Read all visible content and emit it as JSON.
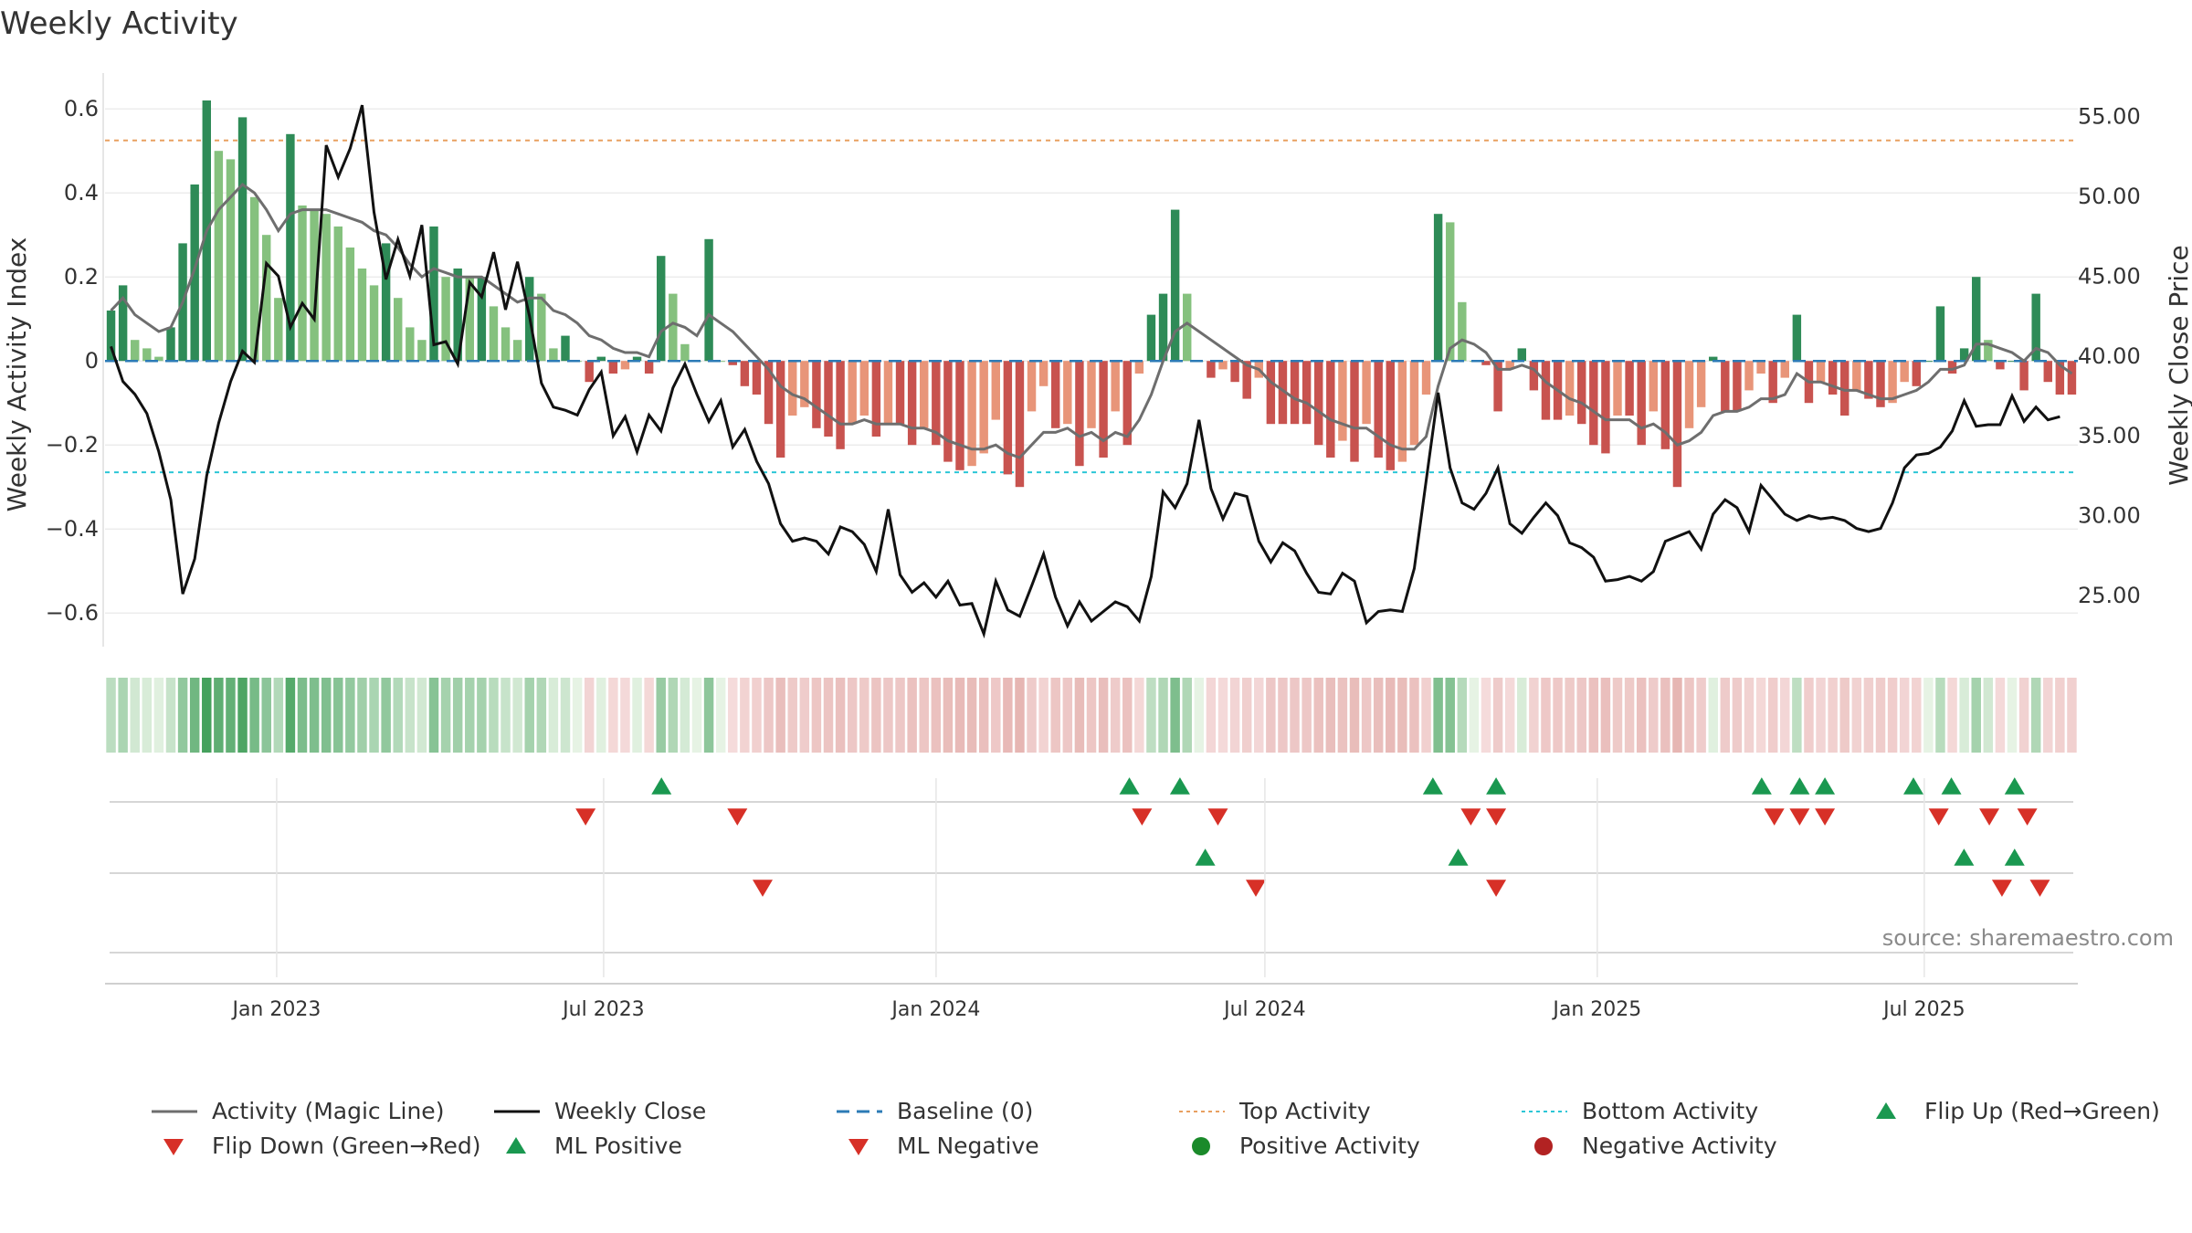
{
  "title": "Weekly Activity",
  "source": "source: sharemaestro.com",
  "colors": {
    "green_strong": "#2e8b57",
    "green_light": "#85c17e",
    "red_strong": "#c8534f",
    "red_light": "#e89579",
    "magic_line": "#6e6e6e",
    "close_line": "#111111",
    "baseline": "#2c7bb6",
    "top_activity": "#e8a060",
    "bottom_activity": "#2cc6d6",
    "marker_up": "#1a9850",
    "marker_down": "#d73027",
    "positive_dot": "#1a8a2a",
    "negative_dot": "#b22222"
  },
  "chart_data": {
    "type": "bar",
    "title": "Weekly Activity",
    "xlabel": "",
    "ylabel": "Weekly Activity Index",
    "y2label": "Weekly Close Price",
    "ylim": [
      -0.68,
      0.62
    ],
    "y2lim": [
      21.8,
      56.0
    ],
    "yticks": [
      -0.6,
      -0.4,
      -0.2,
      0,
      0.2,
      0.4,
      0.6
    ],
    "ytick_labels": [
      "−0.6",
      "−0.4",
      "−0.2",
      "0",
      "0.2",
      "0.4",
      "0.6"
    ],
    "y2ticks": [
      25,
      30,
      35,
      40,
      45,
      50,
      55
    ],
    "y2tick_labels": [
      "25.00",
      "30.00",
      "35.00",
      "40.00",
      "45.00",
      "50.00",
      "55.00"
    ],
    "x_start": "2022-09-28",
    "x_end": "2025-09-24",
    "xticks": [
      "2023-01-01",
      "2023-07-01",
      "2024-01-01",
      "2024-07-01",
      "2025-01-01",
      "2025-07-01"
    ],
    "xtick_labels": [
      "Jan 2023",
      "Jul 2023",
      "Jan 2024",
      "Jul 2024",
      "Jan 2025",
      "Jul 2025"
    ],
    "top_activity": 0.525,
    "bottom_activity": -0.265,
    "activity": [
      0.12,
      0.18,
      0.05,
      0.03,
      0.01,
      0.08,
      0.28,
      0.42,
      0.62,
      0.5,
      0.48,
      0.58,
      0.39,
      0.3,
      0.15,
      0.54,
      0.37,
      0.36,
      0.35,
      0.32,
      0.27,
      0.22,
      0.18,
      0.28,
      0.15,
      0.08,
      0.05,
      0.32,
      0.2,
      0.22,
      0.2,
      0.2,
      0.13,
      0.08,
      0.05,
      0.2,
      0.16,
      0.03,
      0.06,
      0.0,
      -0.05,
      0.01,
      -0.03,
      -0.02,
      0.01,
      -0.03,
      0.25,
      0.16,
      0.04,
      0.0,
      0.29,
      0.0,
      -0.01,
      -0.06,
      -0.08,
      -0.15,
      -0.23,
      -0.13,
      -0.11,
      -0.16,
      -0.18,
      -0.21,
      -0.15,
      -0.13,
      -0.18,
      -0.15,
      -0.15,
      -0.2,
      -0.16,
      -0.2,
      -0.24,
      -0.26,
      -0.25,
      -0.22,
      -0.14,
      -0.27,
      -0.3,
      -0.12,
      -0.06,
      -0.16,
      -0.15,
      -0.25,
      -0.16,
      -0.23,
      -0.12,
      -0.2,
      -0.03,
      0.11,
      0.16,
      0.36,
      0.16,
      0.0,
      -0.04,
      -0.02,
      -0.05,
      -0.09,
      -0.04,
      -0.15,
      -0.15,
      -0.15,
      -0.15,
      -0.2,
      -0.23,
      -0.19,
      -0.24,
      -0.15,
      -0.23,
      -0.26,
      -0.24,
      -0.2,
      -0.08,
      0.35,
      0.33,
      0.14,
      0.0,
      -0.01,
      -0.12,
      -0.02,
      0.03,
      -0.07,
      -0.14,
      -0.14,
      -0.13,
      -0.15,
      -0.2,
      -0.22,
      -0.13,
      -0.13,
      -0.2,
      -0.12,
      -0.21,
      -0.3,
      -0.16,
      -0.11,
      0.01,
      -0.12,
      -0.12,
      -0.07,
      -0.03,
      -0.1,
      -0.04,
      0.11,
      -0.1,
      -0.05,
      -0.08,
      -0.13,
      -0.07,
      -0.09,
      -0.11,
      -0.1,
      -0.05,
      -0.06,
      0.0,
      0.13,
      -0.03,
      0.03,
      0.2,
      0.05,
      -0.02,
      0.0,
      -0.07,
      0.16,
      -0.05,
      -0.08,
      -0.08
    ],
    "magic_line": [
      0.12,
      0.15,
      0.11,
      0.09,
      0.07,
      0.08,
      0.14,
      0.22,
      0.31,
      0.36,
      0.39,
      0.42,
      0.4,
      0.36,
      0.31,
      0.35,
      0.36,
      0.36,
      0.36,
      0.35,
      0.34,
      0.33,
      0.31,
      0.3,
      0.27,
      0.23,
      0.2,
      0.22,
      0.21,
      0.2,
      0.2,
      0.2,
      0.18,
      0.16,
      0.14,
      0.15,
      0.15,
      0.12,
      0.11,
      0.09,
      0.06,
      0.05,
      0.03,
      0.02,
      0.02,
      0.01,
      0.07,
      0.09,
      0.08,
      0.06,
      0.11,
      0.09,
      0.07,
      0.04,
      0.01,
      -0.02,
      -0.06,
      -0.08,
      -0.09,
      -0.11,
      -0.13,
      -0.15,
      -0.15,
      -0.14,
      -0.15,
      -0.15,
      -0.15,
      -0.16,
      -0.16,
      -0.17,
      -0.19,
      -0.2,
      -0.21,
      -0.21,
      -0.2,
      -0.22,
      -0.23,
      -0.2,
      -0.17,
      -0.17,
      -0.16,
      -0.18,
      -0.17,
      -0.19,
      -0.17,
      -0.18,
      -0.14,
      -0.08,
      0.0,
      0.07,
      0.09,
      0.07,
      0.05,
      0.03,
      0.01,
      -0.01,
      -0.02,
      -0.05,
      -0.07,
      -0.09,
      -0.1,
      -0.12,
      -0.14,
      -0.15,
      -0.16,
      -0.16,
      -0.18,
      -0.2,
      -0.21,
      -0.21,
      -0.18,
      -0.06,
      0.03,
      0.05,
      0.04,
      0.02,
      -0.02,
      -0.02,
      -0.01,
      -0.02,
      -0.05,
      -0.07,
      -0.09,
      -0.1,
      -0.12,
      -0.14,
      -0.14,
      -0.14,
      -0.16,
      -0.15,
      -0.17,
      -0.2,
      -0.19,
      -0.17,
      -0.13,
      -0.12,
      -0.12,
      -0.11,
      -0.09,
      -0.09,
      -0.08,
      -0.03,
      -0.05,
      -0.05,
      -0.06,
      -0.07,
      -0.07,
      -0.08,
      -0.09,
      -0.09,
      -0.08,
      -0.07,
      -0.05,
      -0.02,
      -0.02,
      -0.01,
      0.04,
      0.04,
      0.03,
      0.02,
      0.0,
      0.03,
      0.02,
      -0.01,
      -0.03
    ],
    "weekly_close": [
      40.6,
      38.4,
      37.6,
      36.4,
      34.0,
      31.0,
      25.1,
      27.3,
      32.5,
      35.8,
      38.4,
      40.3,
      39.6,
      45.8,
      45.0,
      41.8,
      43.3,
      42.3,
      53.2,
      51.2,
      53.0,
      55.7,
      49.0,
      44.8,
      47.3,
      45.0,
      48.2,
      40.7,
      40.9,
      39.5,
      44.6,
      43.7,
      46.5,
      42.9,
      45.9,
      42.5,
      38.3,
      36.8,
      36.6,
      36.3,
      37.9,
      39.0,
      35.0,
      36.2,
      34.0,
      36.3,
      35.3,
      38.0,
      39.5,
      37.6,
      35.9,
      37.2,
      34.3,
      35.4,
      33.4,
      32.0,
      29.5,
      28.4,
      28.6,
      28.4,
      27.6,
      29.3,
      29.0,
      28.2,
      26.5,
      30.4,
      26.3,
      25.2,
      25.8,
      24.9,
      25.9,
      24.4,
      24.5,
      22.6,
      25.9,
      24.1,
      23.7,
      25.6,
      27.6,
      24.9,
      23.1,
      24.6,
      23.4,
      24.0,
      24.6,
      24.3,
      23.4,
      26.2,
      31.5,
      30.5,
      32.0,
      36.0,
      31.7,
      29.8,
      31.4,
      31.2,
      28.4,
      27.1,
      28.3,
      27.8,
      26.4,
      25.2,
      25.1,
      26.4,
      25.9,
      23.3,
      24.0,
      24.1,
      24.0,
      26.7,
      32.2,
      37.7,
      33.0,
      30.8,
      30.4,
      31.4,
      33.0,
      29.5,
      28.9,
      29.9,
      30.8,
      30.0,
      28.3,
      28.0,
      27.4,
      25.9,
      26.0,
      26.2,
      25.9,
      26.5,
      28.4,
      28.7,
      29.0,
      27.9,
      30.1,
      31.0,
      30.5,
      29.0,
      31.9,
      31.0,
      30.1,
      29.7,
      30.0,
      29.8,
      29.9,
      29.7,
      29.2,
      29.0,
      29.2,
      30.8,
      33.0,
      33.8,
      33.9,
      34.3,
      35.3,
      37.2,
      35.6,
      35.7,
      35.7,
      37.5,
      35.9,
      36.8,
      36.0,
      36.2
    ]
  },
  "markers": {
    "flip_up": [
      "2023-08-02",
      "2024-04-17",
      "2024-05-15",
      "2024-10-02",
      "2024-11-06",
      "2025-04-02",
      "2025-04-23",
      "2025-05-07",
      "2025-06-25",
      "2025-07-16",
      "2025-08-20"
    ],
    "flip_down": [
      "2023-06-21",
      "2023-09-13",
      "2024-04-24",
      "2024-06-05",
      "2024-10-23",
      "2024-11-06",
      "2025-04-09",
      "2025-04-23",
      "2025-05-07",
      "2025-07-09",
      "2025-08-06",
      "2025-08-27"
    ],
    "ml_positive": [
      "2024-05-29",
      "2024-10-16",
      "2025-07-23",
      "2025-08-20"
    ],
    "ml_negative": [
      "2023-09-27",
      "2024-06-26",
      "2024-11-06",
      "2025-08-13",
      "2025-09-03"
    ]
  },
  "legend": [
    {
      "kind": "line-solid-gray",
      "label": "Activity (Magic Line)"
    },
    {
      "kind": "line-solid-black",
      "label": "Weekly Close"
    },
    {
      "kind": "line-dashed-blue",
      "label": "Baseline (0)"
    },
    {
      "kind": "line-dotted-orange",
      "label": "Top Activity"
    },
    {
      "kind": "line-dotted-cyan",
      "label": "Bottom Activity"
    },
    {
      "kind": "triangle-up-green",
      "label": "Flip Up (Red→Green)"
    },
    {
      "kind": "triangle-down-red",
      "label": "Flip Down (Green→Red)"
    },
    {
      "kind": "triangle-up-green",
      "label": "ML Positive"
    },
    {
      "kind": "triangle-down-red",
      "label": "ML Negative"
    },
    {
      "kind": "dot-green",
      "label": "Positive Activity"
    },
    {
      "kind": "dot-red",
      "label": "Negative Activity"
    }
  ]
}
